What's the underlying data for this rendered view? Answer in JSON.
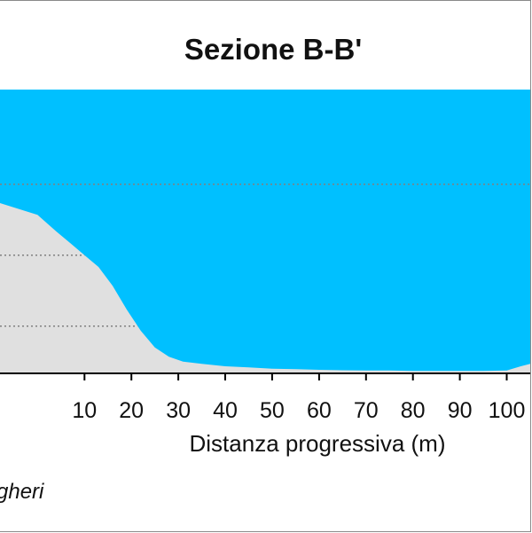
{
  "chart_data": {
    "type": "area",
    "title": "Sezione B-B'",
    "xlabel": "Distanza progressiva (m)",
    "ylabel": "",
    "xlim": [
      -8,
      105
    ],
    "ylim": [
      -12,
      0
    ],
    "x_ticks": [
      10,
      20,
      30,
      40,
      50,
      60,
      70,
      80,
      90,
      100
    ],
    "x_tick_labels": [
      "10",
      "20",
      "30",
      "40",
      "50",
      "60",
      "70",
      "80",
      "90",
      "100"
    ],
    "grid_y": [
      -10,
      -7,
      -4
    ],
    "grid": true,
    "credit": "gheri",
    "colors": {
      "water": "#00c0ff",
      "seabed": "#e0e0e0",
      "grid": "#808080",
      "axis": "#000000"
    },
    "series": [
      {
        "x": [
          -8,
          0,
          4,
          7,
          10,
          13,
          16,
          19,
          22,
          25,
          28,
          31,
          35,
          40,
          45,
          50,
          55,
          60,
          65,
          70,
          75,
          80,
          85,
          90,
          95,
          100,
          103,
          105
        ],
        "y": [
          -4.8,
          -5.3,
          -6.0,
          -6.5,
          -7.0,
          -7.5,
          -8.3,
          -9.3,
          -10.2,
          -10.9,
          -11.3,
          -11.5,
          -11.6,
          -11.7,
          -11.75,
          -11.8,
          -11.82,
          -11.85,
          -11.87,
          -11.88,
          -11.88,
          -11.9,
          -11.9,
          -11.9,
          -11.9,
          -11.88,
          -11.7,
          -11.6
        ]
      }
    ]
  }
}
